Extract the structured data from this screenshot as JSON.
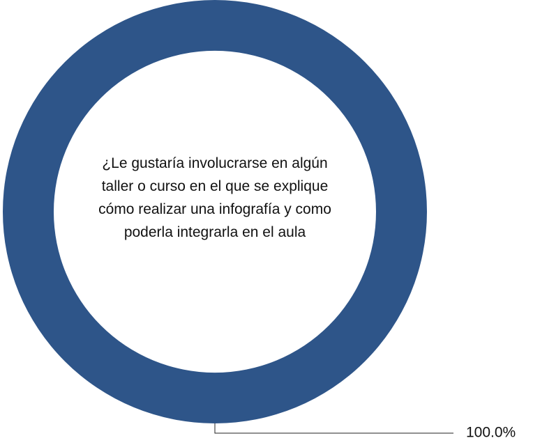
{
  "chart_data": {
    "type": "donut",
    "title": "¿Le gustaría involucrarse en algún taller o curso en el que se explique cómo realizar una infografía y como poderla integrarla en el aula",
    "values": [
      100
    ],
    "value_labels": [
      "100.0%"
    ],
    "colors": [
      "#2e5589"
    ]
  }
}
